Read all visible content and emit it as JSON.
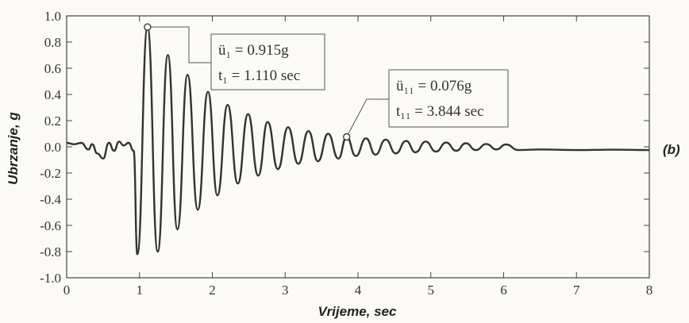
{
  "panel_label": "(b)",
  "chart_data": {
    "type": "line",
    "xlabel": "Vrijeme, sec",
    "ylabel": "Ubrzanje, g",
    "xlim": [
      0,
      8
    ],
    "ylim": [
      -1.0,
      1.0
    ],
    "x_ticks": [
      0,
      1,
      2,
      3,
      4,
      5,
      6,
      7,
      8
    ],
    "y_ticks": [
      1.0,
      0.8,
      0.6,
      0.4,
      0.2,
      0.0,
      -0.2,
      -0.4,
      -0.6,
      -0.8,
      -1.0
    ],
    "x_tick_labels": [
      "0",
      "1",
      "2",
      "3",
      "4",
      "5",
      "6",
      "7",
      "8"
    ],
    "y_tick_labels": [
      "1.0",
      "0.8",
      "0.6",
      "0.4",
      "0.2",
      "0.0",
      "-0.2",
      "-0.4",
      "-0.6",
      "-0.8",
      "-1.0"
    ],
    "grid": false,
    "line_color": "#333333",
    "series": [
      {
        "x": [
          0.0,
          0.1,
          0.2,
          0.3,
          0.35,
          0.42,
          0.5,
          0.58,
          0.65,
          0.72,
          0.78,
          0.85,
          0.92,
          0.97,
          1.11,
          1.25,
          1.39,
          1.52,
          1.66,
          1.8,
          1.94,
          2.07,
          2.21,
          2.35,
          2.49,
          2.63,
          2.76,
          2.9,
          3.04,
          3.18,
          3.32,
          3.45,
          3.59,
          3.73,
          3.844,
          3.97,
          4.11,
          4.24,
          4.38,
          4.52,
          4.66,
          4.79,
          4.93,
          5.07,
          5.21,
          5.35,
          5.48,
          5.62,
          5.76,
          5.9,
          6.03,
          6.2,
          6.5,
          7.0,
          7.5,
          8.0
        ],
        "y": [
          0.03,
          0.02,
          0.03,
          -0.02,
          0.02,
          -0.05,
          -0.09,
          0.03,
          -0.03,
          0.04,
          0.01,
          0.03,
          -0.03,
          -0.82,
          0.915,
          -0.8,
          0.7,
          -0.63,
          0.55,
          -0.48,
          0.42,
          -0.37,
          0.32,
          -0.28,
          0.25,
          -0.22,
          0.19,
          -0.17,
          0.15,
          -0.13,
          0.12,
          -0.11,
          0.1,
          -0.09,
          0.076,
          -0.07,
          0.065,
          -0.06,
          0.055,
          -0.05,
          0.045,
          -0.042,
          0.04,
          -0.037,
          0.033,
          -0.03,
          0.027,
          -0.025,
          0.022,
          -0.02,
          0.018,
          -0.025,
          -0.02,
          -0.025,
          -0.022,
          -0.025
        ]
      }
    ],
    "annotations": [
      {
        "x": 1.11,
        "y": 0.915,
        "line1": "ü₁ = 0.915g",
        "line2": "t₁ = 1.110 sec"
      },
      {
        "x": 3.844,
        "y": 0.076,
        "line1": "ü₁₁ = 0.076g",
        "line2": "t₁₁ = 3.844 sec"
      }
    ]
  }
}
